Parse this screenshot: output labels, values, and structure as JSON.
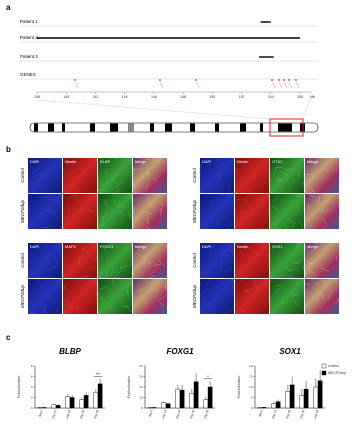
{
  "panel_a": {
    "label": "a",
    "tracks": [
      "Patient 1",
      "Patient 2",
      "Patient 3",
      "GENES"
    ],
    "xlim": [
      138,
      156
    ],
    "xticks": [
      138,
      140,
      142,
      144,
      146,
      148,
      150,
      152,
      154,
      156
    ],
    "unit": "Mb",
    "patient_spans": [
      [
        153.3,
        154.0
      ],
      [
        138.0,
        156.0
      ],
      [
        153.2,
        154.2
      ]
    ]
  },
  "panel_b": {
    "label": "b",
    "groups": [
      {
        "rows": [
          "Control",
          "MECP2dup"
        ],
        "columns": [
          "DAPI",
          "Nestin",
          "BLBP",
          "Merge"
        ]
      },
      {
        "rows": [
          "Control",
          "MECP2dup"
        ],
        "columns": [
          "DAPI",
          "Nestin",
          "OTX2",
          "Merge"
        ]
      },
      {
        "rows": [
          "Control",
          "MECP2dup"
        ],
        "columns": [
          "DAPI",
          "MAP2",
          "FOXG1",
          "Merge"
        ]
      },
      {
        "rows": [
          "Control",
          "MECP2dup"
        ],
        "columns": [
          "DAPI",
          "Nestin",
          "SOX1",
          "Merge"
        ]
      }
    ]
  },
  "panel_c": {
    "label": "c"
  },
  "chart_data": [
    {
      "type": "bar",
      "title": "BLBP",
      "ylabel": "Fold activation",
      "categories": [
        "day 0",
        "day 10",
        "day 20",
        "day 30",
        "day 35"
      ],
      "ylim": [
        0,
        8
      ],
      "yticks": [
        0,
        2,
        4,
        6,
        8
      ],
      "series": [
        {
          "color": "#ffffff",
          "values": [
            0.1,
            0.6,
            2.2,
            1.6,
            3.0
          ],
          "errors": [
            0.05,
            0.2,
            0.5,
            0.4,
            0.6
          ]
        },
        {
          "color": "#000000",
          "values": [
            0.1,
            0.5,
            2.0,
            2.4,
            4.6
          ],
          "errors": [
            0.05,
            0.2,
            0.5,
            0.6,
            1.0
          ]
        }
      ],
      "annotations": [
        {
          "text": "***",
          "category": "day 35"
        }
      ]
    },
    {
      "type": "bar",
      "title": "FOXG1",
      "ylabel": "Fold activation",
      "categories": [
        "day 0",
        "day 10",
        "day 20",
        "day 30",
        "day 35"
      ],
      "ylim": [
        0,
        40
      ],
      "yticks": [
        0,
        10,
        20,
        30,
        40
      ],
      "series": [
        {
          "color": "#ffffff",
          "values": [
            0.5,
            5,
            18,
            14,
            8
          ],
          "errors": [
            0.2,
            1,
            4,
            4,
            3
          ]
        },
        {
          "color": "#000000",
          "values": [
            0.5,
            4,
            17,
            25,
            20
          ],
          "errors": [
            0.2,
            1,
            5,
            8,
            6
          ]
        }
      ],
      "annotations": [
        {
          "text": "*",
          "category": "day 35"
        }
      ]
    },
    {
      "type": "bar",
      "title": "SOX1",
      "ylabel": "Fold activation",
      "categories": [
        "day 0",
        "day 10",
        "day 20",
        "day 30",
        "day 35"
      ],
      "ylim": [
        0,
        20
      ],
      "yticks": [
        0,
        5,
        10,
        15,
        20
      ],
      "series": [
        {
          "name": "control",
          "color": "#ffffff",
          "values": [
            0.2,
            2,
            8,
            6,
            10
          ],
          "errors": [
            0.1,
            1,
            3,
            3,
            4
          ]
        },
        {
          "name": "MECP2dup",
          "color": "#000000",
          "values": [
            0.3,
            3,
            11,
            9,
            13
          ],
          "errors": [
            0.1,
            1,
            4,
            4,
            5
          ]
        }
      ]
    }
  ]
}
